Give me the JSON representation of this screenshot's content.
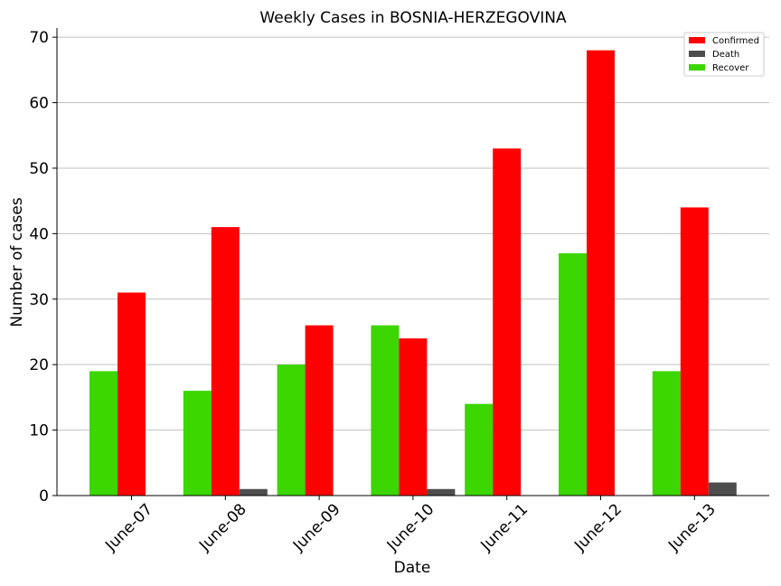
{
  "chart_data": {
    "type": "bar",
    "title": "Weekly Cases in BOSNIA-HERZEGOVINA",
    "xlabel": "Date",
    "ylabel": "Number of cases",
    "categories": [
      "June-07",
      "June-08",
      "June-09",
      "June-10",
      "June-11",
      "June-12",
      "June-13"
    ],
    "series": [
      {
        "name": "Recover",
        "color": "#3cd600",
        "values": [
          19,
          16,
          20,
          26,
          14,
          37,
          19
        ]
      },
      {
        "name": "Confirmed",
        "color": "#ff0000",
        "values": [
          31,
          41,
          26,
          24,
          53,
          68,
          44
        ]
      },
      {
        "name": "Death",
        "color": "#4d4d4d",
        "values": [
          0,
          1,
          0,
          1,
          0,
          0,
          2
        ]
      }
    ],
    "legend_order": [
      "Confirmed",
      "Death",
      "Recover"
    ],
    "legend_position": "top-right",
    "ylim": [
      0,
      71.4
    ],
    "yticks": [
      0,
      10,
      20,
      30,
      40,
      50,
      60,
      70
    ],
    "grid": "horizontal"
  }
}
